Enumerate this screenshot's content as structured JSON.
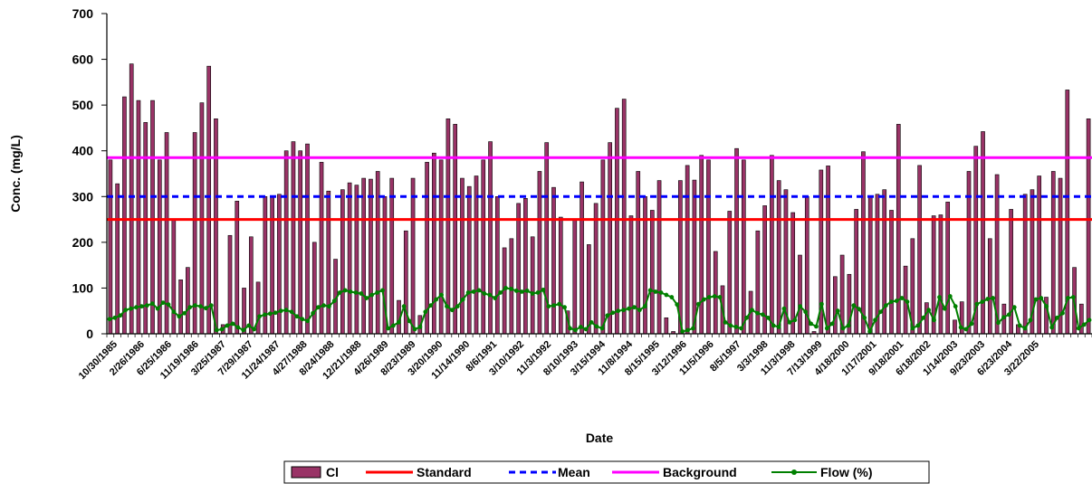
{
  "chart_data": {
    "type": "bar",
    "title": "",
    "xlabel": "Date",
    "ylabel": "Conc. (mg/L)",
    "ylim": [
      0,
      700
    ],
    "yticks": [
      0,
      100,
      200,
      300,
      400,
      500,
      600,
      700
    ],
    "grid": false,
    "legend_position": "bottom",
    "xtick_labels": [
      "10/30/1985",
      "2/26/1986",
      "6/25/1986",
      "11/19/1986",
      "3/25/1987",
      "7/29/1987",
      "11/24/1987",
      "4/27/1988",
      "8/24/1988",
      "12/21/1988",
      "4/26/1989",
      "8/23/1989",
      "3/20/1990",
      "11/14/1990",
      "8/6/1991",
      "3/10/1992",
      "11/3/1992",
      "8/10/1993",
      "3/15/1994",
      "11/8/1994",
      "8/15/1995",
      "3/12/1996",
      "11/5/1996",
      "8/5/1997",
      "3/3/1998",
      "11/3/1998",
      "7/13/1999",
      "4/18/2000",
      "1/17/2001",
      "9/18/2001",
      "6/18/2002",
      "1/14/2003",
      "9/23/2003",
      "6/23/2004",
      "3/22/2005"
    ],
    "series": [
      {
        "name": "Cl",
        "kind": "bar",
        "color": "#993366",
        "values": [
          380,
          328,
          518,
          590,
          510,
          462,
          510,
          380,
          440,
          248,
          118,
          145,
          440,
          505,
          585,
          470,
          20,
          215,
          290,
          100,
          212,
          113,
          300,
          300,
          305,
          400,
          420,
          400,
          415,
          200,
          375,
          312,
          163,
          315,
          330,
          325,
          340,
          338,
          355,
          300,
          340,
          73,
          225,
          340,
          40,
          375,
          395,
          380,
          470,
          458,
          340,
          322,
          345,
          380,
          420,
          300,
          188,
          208,
          285,
          296,
          212,
          355,
          418,
          320,
          255,
          50,
          248,
          332,
          195,
          285,
          380,
          418,
          493,
          513,
          258,
          355,
          300,
          270,
          335,
          35,
          5,
          335,
          368,
          336,
          390,
          380,
          180,
          105,
          268,
          405,
          380,
          93,
          225,
          280,
          390,
          335,
          315,
          265,
          172,
          300,
          5,
          358,
          367,
          125,
          172,
          130,
          272,
          398,
          300,
          305,
          315,
          270,
          458,
          148,
          208,
          368,
          68,
          258,
          260,
          288,
          30,
          70,
          355,
          410,
          442,
          208,
          348,
          65,
          272,
          20,
          305,
          315,
          345,
          80,
          355,
          340,
          533,
          145,
          65,
          470
        ]
      },
      {
        "name": "Standard",
        "kind": "hline",
        "color": "#ff0000",
        "value": 250
      },
      {
        "name": "Mean",
        "kind": "hline",
        "color": "#0000ff",
        "dashed": true,
        "value": 300
      },
      {
        "name": "Background",
        "kind": "hline",
        "color": "#ff00ff",
        "value": 385
      },
      {
        "name": "Flow (%)",
        "kind": "line",
        "color": "#008000",
        "values": [
          32,
          35,
          40,
          52,
          55,
          58,
          60,
          62,
          66,
          55,
          68,
          64,
          48,
          38,
          45,
          58,
          62,
          60,
          56,
          62,
          8,
          10,
          18,
          22,
          14,
          8,
          18,
          10,
          38,
          42,
          44,
          46,
          50,
          52,
          48,
          38,
          32,
          28,
          45,
          58,
          62,
          60,
          72,
          90,
          95,
          92,
          90,
          88,
          78,
          85,
          90,
          95,
          12,
          18,
          25,
          60,
          28,
          10,
          15,
          48,
          62,
          75,
          85,
          60,
          52,
          60,
          75,
          90,
          92,
          95,
          88,
          85,
          78,
          90,
          100,
          98,
          94,
          92,
          94,
          88,
          90,
          96,
          60,
          62,
          65,
          58,
          12,
          8,
          15,
          10,
          25,
          16,
          12,
          40,
          46,
          50,
          52,
          55,
          58,
          52,
          60,
          95,
          92,
          90,
          85,
          80,
          64,
          5,
          8,
          12,
          65,
          75,
          80,
          82,
          80,
          25,
          18,
          15,
          12,
          35,
          52,
          45,
          42,
          35,
          18,
          15,
          55,
          25,
          30,
          60,
          48,
          22,
          16,
          65,
          12,
          22,
          50,
          12,
          18,
          62,
          54,
          35,
          5,
          30,
          48,
          62,
          70,
          72,
          78,
          70,
          12,
          18,
          35,
          52,
          30,
          80,
          55,
          82,
          60,
          14,
          10,
          22,
          65,
          70,
          76,
          78,
          24,
          36,
          42,
          58,
          18,
          12,
          30,
          75,
          78,
          60,
          14,
          35,
          45,
          78,
          80,
          12,
          20,
          30
        ]
      }
    ]
  }
}
